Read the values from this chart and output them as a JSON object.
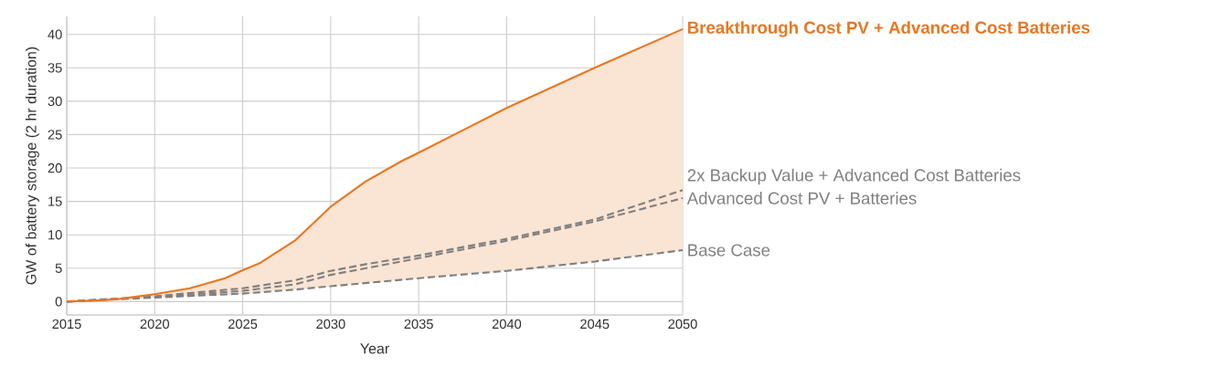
{
  "chart_data": {
    "type": "line",
    "xlabel": "Year",
    "ylabel": "GW of battery storage (2 hr duration)",
    "xlim": [
      2015,
      2050
    ],
    "xticks": [
      2015,
      2020,
      2025,
      2030,
      2035,
      2040,
      2045,
      2050
    ],
    "ylim": [
      -2,
      42.7
    ],
    "yticks": [
      0,
      5,
      10,
      15,
      20,
      25,
      30,
      35,
      40
    ],
    "grid": true,
    "marker": "none",
    "series": [
      {
        "name": "Breakthrough Cost PV + Advanced Cost Batteries",
        "color": "#e87722",
        "line_style": "solid",
        "x": [
          2015,
          2017,
          2018,
          2020,
          2022,
          2024,
          2025,
          2026,
          2028,
          2030,
          2032,
          2034,
          2035,
          2040,
          2045,
          2050
        ],
        "values": [
          0,
          0.2,
          0.4,
          1.1,
          2.0,
          3.5,
          4.7,
          5.8,
          9.2,
          14.2,
          18.0,
          21.0,
          22.3,
          29.0,
          35.0,
          40.8
        ],
        "upper": [
          0,
          0.2,
          0.4,
          1.1,
          2.0,
          3.5,
          4.7,
          5.8,
          9.2,
          14.2,
          18.0,
          21.0,
          22.3,
          29.0,
          35.0,
          40.8
        ],
        "lower": [
          0,
          0.1,
          0.3,
          0.6,
          0.84,
          1.0,
          1.2,
          1.4,
          1.8,
          2.3,
          2.8,
          3.2,
          3.5,
          4.6,
          6.0,
          7.7
        ]
      },
      {
        "name": "2x Backup Value + Advanced Cost Batteries",
        "color": "#808080",
        "line_style": "dashed",
        "x": [
          2015,
          2020,
          2025,
          2028,
          2030,
          2032,
          2035,
          2040,
          2045,
          2050
        ],
        "values": [
          0,
          0.8,
          2.0,
          3.2,
          4.6,
          5.6,
          6.9,
          9.4,
          12.3,
          16.7
        ]
      },
      {
        "name": "Advanced Cost PV + Batteries",
        "color": "#808080",
        "line_style": "dashed",
        "x": [
          2015,
          2020,
          2025,
          2028,
          2030,
          2032,
          2035,
          2040,
          2045,
          2050
        ],
        "values": [
          0,
          0.7,
          1.6,
          2.6,
          4.0,
          5.0,
          6.5,
          9.1,
          12.0,
          15.5
        ]
      },
      {
        "name": "Base Case",
        "color": "#808080",
        "line_style": "dashed",
        "x": [
          2015,
          2020,
          2025,
          2028,
          2030,
          2035,
          2040,
          2045,
          2050
        ],
        "values": [
          0,
          0.6,
          1.2,
          1.8,
          2.3,
          3.5,
          4.6,
          6.0,
          7.7
        ]
      }
    ]
  }
}
